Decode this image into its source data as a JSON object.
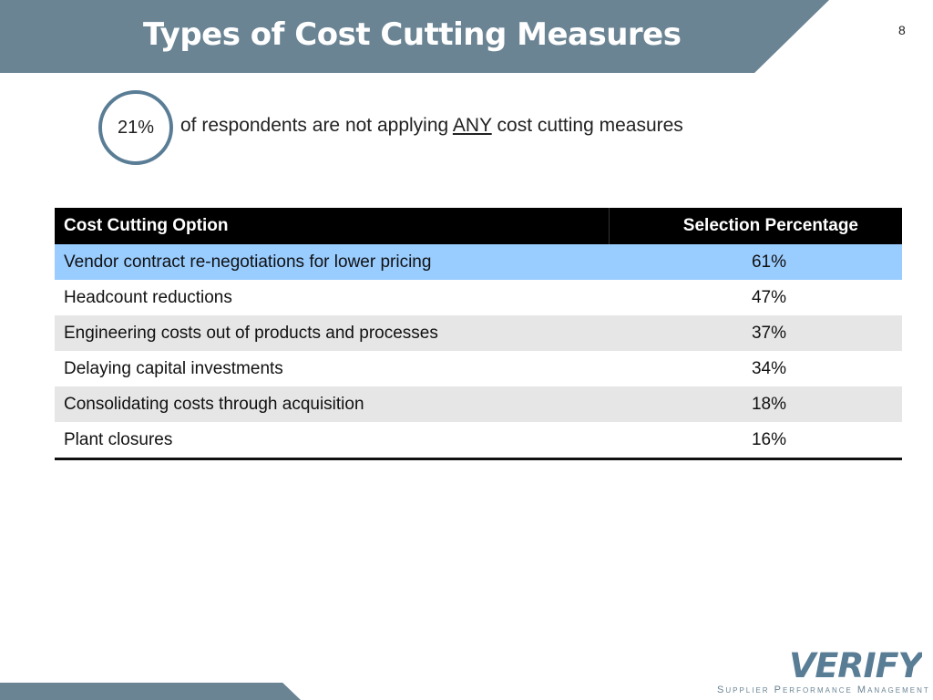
{
  "slide": {
    "title": "Types of Cost Cutting Measures",
    "number": "8"
  },
  "stat": {
    "value": "21%",
    "text_before": "of respondents are not applying ",
    "emphasis": "ANY",
    "text_after": " cost cutting measures"
  },
  "table": {
    "headers": [
      "Cost Cutting Option",
      "Selection Percentage"
    ],
    "rows": [
      {
        "option": "Vendor contract re-negotiations for lower pricing",
        "percentage": "61%"
      },
      {
        "option": "Headcount reductions",
        "percentage": "47%"
      },
      {
        "option": "Engineering costs out of products and processes",
        "percentage": "37%"
      },
      {
        "option": "Delaying capital investments",
        "percentage": "34%"
      },
      {
        "option": "Consolidating costs through acquisition",
        "percentage": "18%"
      },
      {
        "option": "Plant closures",
        "percentage": "16%"
      }
    ]
  },
  "brand": {
    "logo_text": "VERIFY",
    "tagline": "Supplier Performance Management",
    "accent_color": "#6a8494",
    "highlight_color": "#99ccff"
  }
}
